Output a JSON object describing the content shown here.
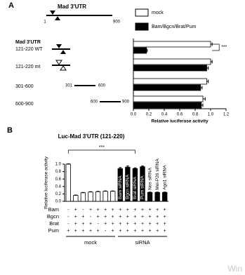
{
  "panel_labels": [
    "A",
    "B"
  ],
  "diagram": {
    "title": "Mad 3'UTR",
    "start": "1",
    "end": "900",
    "header": "Mad 3'UTR",
    "fragments": [
      {
        "start": "301",
        "end": "600"
      },
      {
        "start": "600",
        "end": "900"
      }
    ]
  },
  "chart_data": [
    {
      "type": "bar",
      "orientation": "horizontal",
      "categories": [
        "121-220 WT",
        "121-220 mt",
        "301-600",
        "600-900"
      ],
      "series": [
        {
          "name": "mock",
          "color": "#ffffff",
          "values": [
            1.0,
            1.0,
            0.95,
            0.9
          ],
          "errors": [
            0.02,
            0.02,
            0.02,
            0.03
          ]
        },
        {
          "name": "Bam/Bgcn/Brat/Pum",
          "color": "#000000",
          "values": [
            0.17,
            0.95,
            0.87,
            0.88
          ],
          "errors": [
            0.01,
            0.02,
            0.02,
            0.02
          ]
        }
      ],
      "xlim": [
        0,
        1.2
      ],
      "xticks": [
        {
          "value": 0,
          "label": "0.0"
        },
        0.2,
        0.4,
        0.6,
        0.8,
        {
          "value": 1,
          "label": "1.0"
        },
        1.2
      ],
      "x_label": "Relative luciferase activity",
      "annotation": "***"
    },
    {
      "type": "bar",
      "title": "Luc-Mad 3'UTR (121-220)",
      "categories": [
        null,
        null,
        null,
        null,
        null,
        null,
        null,
        "Bam siRNA",
        "Bgcn siRNA",
        "Brat siRNA",
        "Pum siRNA",
        "Nos siRNA",
        "Mei-P26 siRNA",
        "Ago1 siRNA"
      ],
      "values": [
        1.0,
        0.16,
        0.23,
        0.25,
        0.26,
        0.27,
        0.27,
        0.88,
        0.92,
        0.88,
        0.93,
        0.24,
        0.24,
        0.24
      ],
      "errors": [
        0.01,
        0.01,
        0.01,
        0.01,
        0.01,
        0.01,
        0.01,
        0.03,
        0.03,
        0.02,
        0.02,
        0.01,
        0.01,
        0.01
      ],
      "colors": [
        "#ffffff",
        "#ffffff",
        "#ffffff",
        "#ffffff",
        "#ffffff",
        "#ffffff",
        "#ffffff",
        "#000000",
        "#000000",
        "#000000",
        "#000000",
        "#000000",
        "#000000",
        "#000000"
      ],
      "ylim": [
        0,
        1
      ],
      "yticks": [
        {
          "value": 0,
          "label": "0.0"
        },
        0.2,
        0.4,
        0.6,
        0.8,
        {
          "value": 1,
          "label": "1.0"
        }
      ],
      "y_label": "Relative luciferase activity",
      "annotation": "***"
    }
  ],
  "table": {
    "rows": [
      {
        "label": "Bam",
        "cells": [
          "-",
          "+",
          "-",
          "+",
          "+",
          "+",
          "+",
          "+",
          "+",
          "+",
          "+",
          "+",
          "+",
          "+"
        ]
      },
      {
        "label": "Bgcn",
        "cells": [
          "-",
          "+",
          "+",
          "-",
          "+",
          "+",
          "+",
          "+",
          "+",
          "+",
          "+",
          "+",
          "+",
          "+"
        ]
      },
      {
        "label": "Brat",
        "cells": [
          "-",
          "+",
          "+",
          "+",
          "-",
          "+",
          "+",
          "+",
          "+",
          "+",
          "+",
          "+",
          "+",
          "+"
        ]
      },
      {
        "label": "Pum",
        "cells": [
          "+",
          "+",
          "+",
          "+",
          "+",
          "-",
          "+",
          "+",
          "+",
          "+",
          "+",
          "+",
          "+",
          "+"
        ]
      }
    ],
    "groups": [
      "mock",
      "siRNA"
    ]
  },
  "watermark": "Win"
}
